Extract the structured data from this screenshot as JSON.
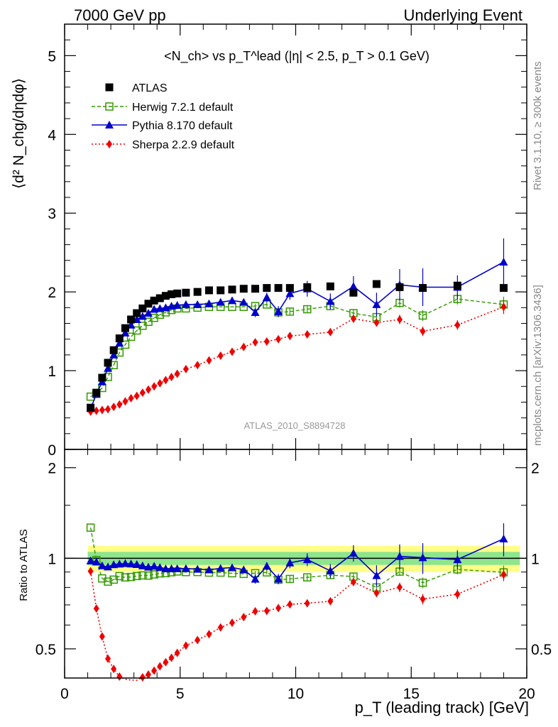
{
  "header": {
    "left": "7000 GeV pp",
    "right": "Underlying Event"
  },
  "side_labels": {
    "rivet": "Rivet 3.1.10, ≥ 300k events",
    "mcplots": "mcplots.cern.ch [arXiv:1306.3436]"
  },
  "chart_data": {
    "type": "line",
    "title": "<N_ch> vs p_T^lead (|η| < 2.5, p_T > 0.1 GeV)",
    "xlabel": "p_T (leading track) [GeV]",
    "ylabel": "⟨d² N_chg/dηdφ⟩",
    "ratio_ylabel": "Ratio to ATLAS",
    "xlim": [
      0,
      20
    ],
    "ylim": [
      0,
      5.4
    ],
    "ratio_ylim": [
      0.4,
      2.3
    ],
    "ratio_scale": "log",
    "analysis_tag": "ATLAS_2010_S8894728",
    "x_ticks": [
      "0",
      "5",
      "10",
      "15",
      "20"
    ],
    "y_ticks": [
      "0",
      "1",
      "2",
      "3",
      "4",
      "5"
    ],
    "ratio_ticks": [
      "0.5",
      "1",
      "2"
    ],
    "legend_position": "top-left",
    "x": [
      1.125,
      1.375,
      1.625,
      1.875,
      2.125,
      2.375,
      2.625,
      2.875,
      3.125,
      3.375,
      3.625,
      3.875,
      4.125,
      4.375,
      4.625,
      4.875,
      5.25,
      5.75,
      6.25,
      6.75,
      7.25,
      7.75,
      8.25,
      8.75,
      9.25,
      9.75,
      10.5,
      11.5,
      12.5,
      13.5,
      14.5,
      15.5,
      17.0,
      19.0
    ],
    "atlas": [
      0.53,
      0.72,
      0.91,
      1.1,
      1.26,
      1.41,
      1.54,
      1.65,
      1.73,
      1.79,
      1.85,
      1.89,
      1.92,
      1.95,
      1.97,
      1.98,
      1.99,
      2.0,
      2.02,
      2.02,
      2.03,
      2.04,
      2.04,
      2.05,
      2.05,
      2.05,
      2.06,
      2.07,
      1.99,
      2.1,
      2.06,
      2.05,
      2.08,
      2.05
    ],
    "series": [
      {
        "name": "Herwig 7.2.1 default",
        "color": "#339900",
        "values": [
          0.67,
          0.71,
          0.78,
          0.92,
          1.07,
          1.23,
          1.33,
          1.43,
          1.51,
          1.57,
          1.62,
          1.67,
          1.71,
          1.74,
          1.77,
          1.79,
          1.79,
          1.8,
          1.81,
          1.81,
          1.81,
          1.81,
          1.82,
          1.84,
          1.74,
          1.75,
          1.78,
          1.82,
          1.73,
          1.68,
          1.86,
          1.7,
          1.91,
          1.84
        ],
        "errors": [
          0.02,
          0.02,
          0.02,
          0.02,
          0.02,
          0.02,
          0.02,
          0.02,
          0.02,
          0.02,
          0.02,
          0.02,
          0.02,
          0.02,
          0.02,
          0.02,
          0.02,
          0.02,
          0.02,
          0.02,
          0.02,
          0.02,
          0.03,
          0.03,
          0.04,
          0.04,
          0.04,
          0.05,
          0.05,
          0.05,
          0.06,
          0.07,
          0.07,
          0.1
        ]
      },
      {
        "name": "Pythia 8.170 default",
        "color": "#0000cc",
        "values": [
          0.52,
          0.7,
          0.86,
          1.03,
          1.2,
          1.35,
          1.48,
          1.58,
          1.65,
          1.69,
          1.73,
          1.78,
          1.79,
          1.8,
          1.82,
          1.83,
          1.84,
          1.84,
          1.85,
          1.87,
          1.89,
          1.87,
          1.74,
          1.93,
          1.75,
          1.98,
          2.04,
          1.88,
          2.07,
          1.84,
          2.09,
          2.06,
          2.06,
          2.38
        ]
      },
      {
        "name": "Sherpa 2.2.9 default",
        "color": "#ee0000",
        "values": [
          0.48,
          0.49,
          0.5,
          0.51,
          0.54,
          0.57,
          0.61,
          0.65,
          0.68,
          0.72,
          0.76,
          0.8,
          0.84,
          0.88,
          0.92,
          0.96,
          1.02,
          1.07,
          1.13,
          1.19,
          1.24,
          1.3,
          1.36,
          1.37,
          1.4,
          1.44,
          1.46,
          1.49,
          1.66,
          1.61,
          1.65,
          1.5,
          1.58,
          1.81
        ]
      }
    ],
    "pythia_errors": [
      0.01,
      0.01,
      0.01,
      0.01,
      0.01,
      0.01,
      0.01,
      0.01,
      0.02,
      0.02,
      0.02,
      0.02,
      0.02,
      0.02,
      0.02,
      0.02,
      0.02,
      0.03,
      0.03,
      0.04,
      0.04,
      0.04,
      0.06,
      0.06,
      0.07,
      0.08,
      0.1,
      0.1,
      0.13,
      0.15,
      0.2,
      0.24,
      0.15,
      0.3
    ],
    "sherpa_errors": [
      0.01,
      0.01,
      0.01,
      0.01,
      0.01,
      0.01,
      0.01,
      0.01,
      0.01,
      0.01,
      0.01,
      0.01,
      0.01,
      0.01,
      0.01,
      0.01,
      0.02,
      0.02,
      0.02,
      0.02,
      0.02,
      0.02,
      0.02,
      0.03,
      0.03,
      0.03,
      0.03,
      0.04,
      0.05,
      0.05,
      0.06,
      0.06,
      0.06,
      0.09
    ],
    "ratio_band_green_halfwidth": 0.05,
    "ratio_band_yellow_halfwidth": 0.1,
    "colors": {
      "atlas": "#000000",
      "band_green": "#8ee58e",
      "band_yellow": "#ffff88"
    }
  }
}
